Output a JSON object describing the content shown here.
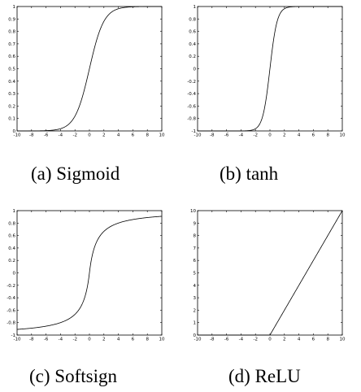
{
  "chart_data": [
    {
      "type": "line",
      "caption": "(a)  Sigmoid",
      "function": "sigmoid",
      "xlim": [
        -10,
        10
      ],
      "ylim": [
        0,
        1
      ],
      "x_ticks": [
        -10,
        -8,
        -6,
        -4,
        -2,
        0,
        2,
        4,
        6,
        8,
        10
      ],
      "x_tick_labels": [
        "-10",
        "-8",
        "-6",
        "-4",
        "-2",
        "0",
        "2",
        "4",
        "6",
        "8",
        "10"
      ],
      "y_ticks": [
        0,
        0.1,
        0.2,
        0.3,
        0.4,
        0.5,
        0.6,
        0.7,
        0.8,
        0.9,
        1
      ],
      "y_tick_labels": [
        "0",
        "0.1",
        "0.2",
        "0.3",
        "0.4",
        "0.5",
        "0.6",
        "0.7",
        "0.8",
        "0.9",
        "1"
      ],
      "x": [
        -10,
        -8,
        -6,
        -5,
        -4,
        -3,
        -2,
        -1,
        0,
        1,
        2,
        3,
        4,
        5,
        6,
        8,
        10
      ],
      "y": [
        4.54e-05,
        0.000335,
        0.00247,
        0.00669,
        0.018,
        0.0474,
        0.119,
        0.269,
        0.5,
        0.731,
        0.881,
        0.953,
        0.982,
        0.993,
        0.998,
        0.99966,
        0.99995
      ],
      "grid": false,
      "line_color": "#000000"
    },
    {
      "type": "line",
      "caption": "(b)  tanh",
      "function": "tanh",
      "xlim": [
        -10,
        10
      ],
      "ylim": [
        -1,
        1
      ],
      "x_ticks": [
        -10,
        -8,
        -6,
        -4,
        -2,
        0,
        2,
        4,
        6,
        8,
        10
      ],
      "x_tick_labels": [
        "-10",
        "-8",
        "-6",
        "-4",
        "-2",
        "0",
        "2",
        "4",
        "6",
        "8",
        "10"
      ],
      "y_ticks": [
        -1,
        -0.8,
        -0.6,
        -0.4,
        -0.2,
        0,
        0.2,
        0.4,
        0.6,
        0.8,
        1
      ],
      "y_tick_labels": [
        "-1",
        "-0.8",
        "-0.6",
        "-0.4",
        "-0.2",
        "0",
        "0.2",
        "0.4",
        "0.6",
        "0.8",
        "1"
      ],
      "x": [
        -10,
        -6,
        -4,
        -3,
        -2,
        -1.5,
        -1,
        -0.5,
        0,
        0.5,
        1,
        1.5,
        2,
        3,
        4,
        6,
        10
      ],
      "y": [
        -1,
        -0.99999,
        -0.9993,
        -0.995,
        -0.964,
        -0.905,
        -0.762,
        -0.462,
        0,
        0.462,
        0.762,
        0.905,
        0.964,
        0.995,
        0.9993,
        0.99999,
        1
      ],
      "grid": false,
      "line_color": "#000000"
    },
    {
      "type": "line",
      "caption": "(c)  Softsign",
      "function": "softsign",
      "xlim": [
        -10,
        10
      ],
      "ylim": [
        -1,
        1
      ],
      "x_ticks": [
        -10,
        -8,
        -6,
        -4,
        -2,
        0,
        2,
        4,
        6,
        8,
        10
      ],
      "x_tick_labels": [
        "-10",
        "-8",
        "-6",
        "-4",
        "-2",
        "0",
        "2",
        "4",
        "6",
        "8",
        "10"
      ],
      "y_ticks": [
        -1,
        -0.8,
        -0.6,
        -0.4,
        -0.2,
        0,
        0.2,
        0.4,
        0.6,
        0.8,
        1
      ],
      "y_tick_labels": [
        "-1",
        "-0.8",
        "-0.6",
        "-0.4",
        "-0.2",
        "0",
        "0.2",
        "0.4",
        "0.6",
        "0.8",
        "1"
      ],
      "x": [
        -10,
        -8,
        -6,
        -4,
        -2,
        -1,
        -0.5,
        0,
        0.5,
        1,
        2,
        4,
        6,
        8,
        10
      ],
      "y": [
        -0.909,
        -0.889,
        -0.857,
        -0.8,
        -0.667,
        -0.5,
        -0.333,
        0,
        0.333,
        0.5,
        0.667,
        0.8,
        0.857,
        0.889,
        0.909
      ],
      "grid": false,
      "line_color": "#000000"
    },
    {
      "type": "line",
      "caption": "(d)  ReLU",
      "function": "relu",
      "xlim": [
        -10,
        10
      ],
      "ylim": [
        0,
        10
      ],
      "x_ticks": [
        -10,
        -8,
        -6,
        -4,
        -2,
        0,
        2,
        4,
        6,
        8,
        10
      ],
      "x_tick_labels": [
        "-10",
        "-8",
        "-6",
        "-4",
        "-2",
        "0",
        "2",
        "4",
        "6",
        "8",
        "10"
      ],
      "y_ticks": [
        0,
        1,
        2,
        3,
        4,
        5,
        6,
        7,
        8,
        9,
        10
      ],
      "y_tick_labels": [
        "0",
        "1",
        "2",
        "3",
        "4",
        "5",
        "6",
        "7",
        "8",
        "9",
        "10"
      ],
      "x": [
        -10,
        0,
        10
      ],
      "y": [
        0,
        0,
        10
      ],
      "grid": false,
      "line_color": "#000000"
    }
  ]
}
